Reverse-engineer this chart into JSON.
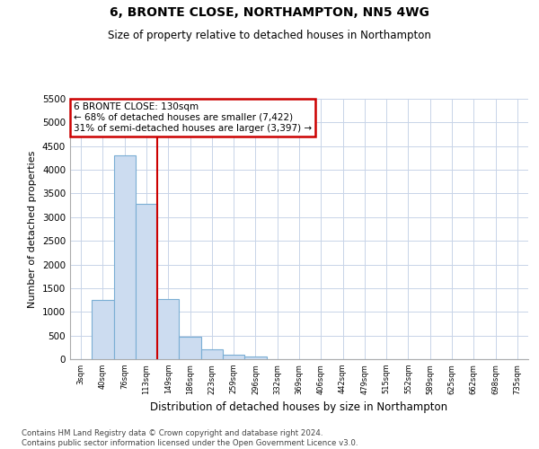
{
  "title": "6, BRONTE CLOSE, NORTHAMPTON, NN5 4WG",
  "subtitle": "Size of property relative to detached houses in Northampton",
  "xlabel": "Distribution of detached houses by size in Northampton",
  "ylabel": "Number of detached properties",
  "categories": [
    "3sqm",
    "40sqm",
    "76sqm",
    "113sqm",
    "149sqm",
    "186sqm",
    "223sqm",
    "259sqm",
    "296sqm",
    "332sqm",
    "369sqm",
    "406sqm",
    "442sqm",
    "479sqm",
    "515sqm",
    "552sqm",
    "589sqm",
    "625sqm",
    "662sqm",
    "698sqm",
    "735sqm"
  ],
  "values": [
    0,
    1250,
    4300,
    3280,
    1270,
    470,
    210,
    95,
    65,
    0,
    0,
    0,
    0,
    0,
    0,
    0,
    0,
    0,
    0,
    0,
    0
  ],
  "bar_color": "#ccdcf0",
  "bar_edge_color": "#7aaed4",
  "vline_color": "#cc0000",
  "vline_x": 3.5,
  "annotation_text": "6 BRONTE CLOSE: 130sqm\n← 68% of detached houses are smaller (7,422)\n31% of semi-detached houses are larger (3,397) →",
  "annotation_box_facecolor": "#ffffff",
  "annotation_box_edgecolor": "#cc0000",
  "ylim_max": 5500,
  "yticks": [
    0,
    500,
    1000,
    1500,
    2000,
    2500,
    3000,
    3500,
    4000,
    4500,
    5000,
    5500
  ],
  "footnote": "Contains HM Land Registry data © Crown copyright and database right 2024.\nContains public sector information licensed under the Open Government Licence v3.0.",
  "background_color": "#ffffff",
  "grid_color": "#c8d4e8"
}
